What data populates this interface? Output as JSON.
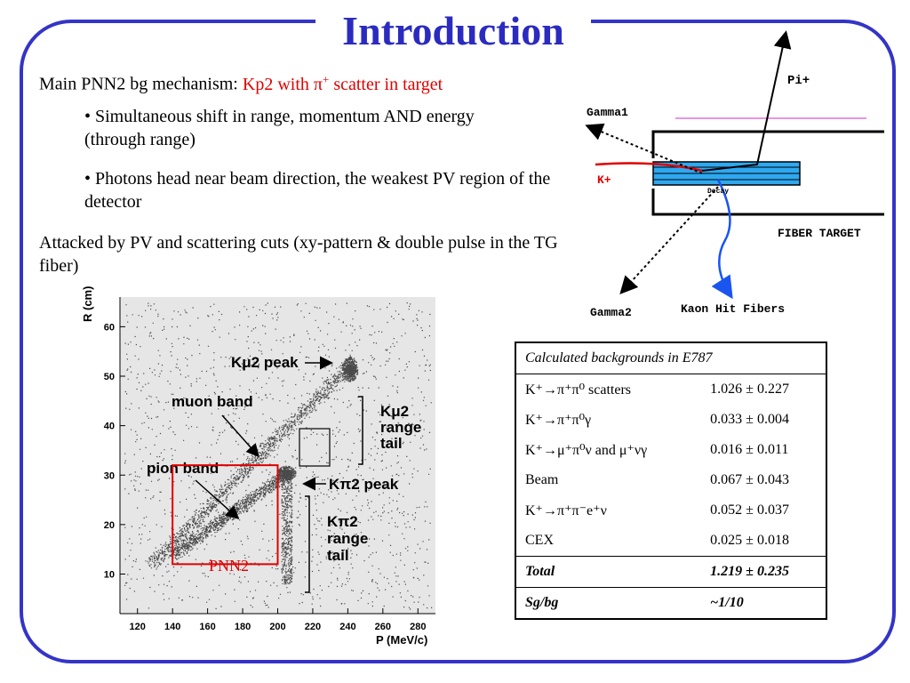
{
  "slide": {
    "title": "Introduction",
    "lead": {
      "text": "Main PNN2 bg mechanism: ",
      "highlight": "Kp2 with π",
      "highlight_sup": "+",
      "highlight_tail": " scatter in target"
    },
    "bullets": [
      "• Simultaneous shift in range, momentum AND energy (through range)",
      "• Photons head near beam direction, the weakest PV region of the detector"
    ],
    "attacked": "Attacked by PV and scattering cuts (xy-pattern & double pulse in the TG fiber)"
  },
  "diagram": {
    "pi_plus": "Pi+",
    "gamma1": "Gamma1",
    "gamma2": "Gamma2",
    "k_plus": "K+",
    "decay": "Decay",
    "fiber_target": "FIBER TARGET",
    "kaon_hit_fibers": "Kaon Hit Fibers",
    "colors": {
      "kaon": "#e00000",
      "fiber": "#2ea8f0",
      "pion_ring": "#e070e0",
      "hit": "#1a55f0"
    }
  },
  "plot": {
    "ylabel": "R (cm)",
    "xlabel": "P (MeV/c)",
    "xticks": [
      "120",
      "140",
      "160",
      "180",
      "200",
      "220",
      "240",
      "260",
      "280"
    ],
    "yticks": [
      "10",
      "20",
      "30",
      "40",
      "50",
      "60"
    ],
    "labels": {
      "kmu2_peak": "Kμ2 peak",
      "muon_band": "muon band",
      "kmu2_tail": [
        "Kμ2",
        "range",
        "tail"
      ],
      "pion_band": "pion band",
      "kpi2_peak": "Kπ2 peak",
      "kpi2_tail": [
        "Kπ2",
        "range",
        "tail"
      ],
      "pnn2": "PNN2"
    },
    "pnn2_box": {
      "p_range": [
        140,
        200
      ],
      "r_range": [
        12,
        32
      ]
    },
    "colors": {
      "pnn2": "#e00000"
    }
  },
  "table": {
    "header": "Calculated backgrounds in E787",
    "rows": [
      {
        "name": "K⁺→π⁺π⁰ scatters",
        "value": "1.026 ± 0.227"
      },
      {
        "name": "K⁺→π⁺π⁰γ",
        "value": "0.033 ± 0.004"
      },
      {
        "name": "K⁺→μ⁺π⁰ν and μ⁺νγ",
        "value": "0.016 ± 0.011"
      },
      {
        "name": "Beam",
        "value": "0.067 ± 0.043"
      },
      {
        "name": "K⁺→π⁺π⁻e⁺ν",
        "value": "0.052 ± 0.037"
      },
      {
        "name": "CEX",
        "value": "0.025 ± 0.018"
      }
    ],
    "total": {
      "name": "Total",
      "value": "1.219 ± 0.235"
    },
    "sgbg": {
      "name": "Sg/bg",
      "value": "~1/10"
    }
  }
}
